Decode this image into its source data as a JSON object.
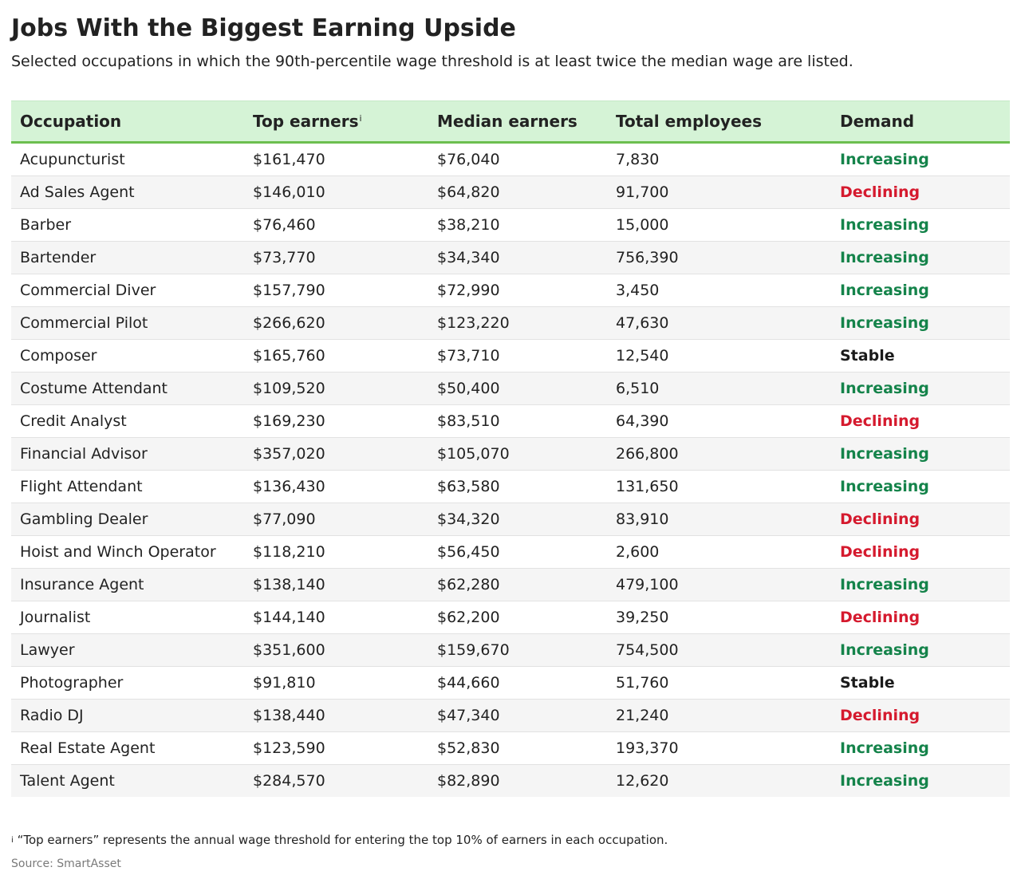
{
  "header": {
    "title": "Jobs With the Biggest Earning Upside",
    "subtitle": "Selected occupations in which the 90th-percentile wage threshold is at least twice the median wage are listed."
  },
  "colors": {
    "header_bg": "#d5f3d6",
    "header_rule": "#6cbf4f",
    "increasing": "#14834a",
    "declining": "#d51a2e",
    "stable": "#1a1a1a"
  },
  "chart_data": {
    "type": "table",
    "columns": [
      "Occupation",
      "Top earners",
      "Median earners",
      "Total employees",
      "Demand"
    ],
    "header_footnote_marker": "i",
    "rows": [
      [
        "Acupuncturist",
        "$161,470",
        "$76,040",
        "7,830",
        "Increasing"
      ],
      [
        "Ad Sales Agent",
        "$146,010",
        "$64,820",
        "91,700",
        "Declining"
      ],
      [
        "Barber",
        "$76,460",
        "$38,210",
        "15,000",
        "Increasing"
      ],
      [
        "Bartender",
        "$73,770",
        "$34,340",
        "756,390",
        "Increasing"
      ],
      [
        "Commercial Diver",
        "$157,790",
        "$72,990",
        "3,450",
        "Increasing"
      ],
      [
        "Commercial Pilot",
        "$266,620",
        "$123,220",
        "47,630",
        "Increasing"
      ],
      [
        "Composer",
        "$165,760",
        "$73,710",
        "12,540",
        "Stable"
      ],
      [
        "Costume Attendant",
        "$109,520",
        "$50,400",
        "6,510",
        "Increasing"
      ],
      [
        "Credit Analyst",
        "$169,230",
        "$83,510",
        "64,390",
        "Declining"
      ],
      [
        "Financial Advisor",
        "$357,020",
        "$105,070",
        "266,800",
        "Increasing"
      ],
      [
        "Flight Attendant",
        "$136,430",
        "$63,580",
        "131,650",
        "Increasing"
      ],
      [
        "Gambling Dealer",
        "$77,090",
        "$34,320",
        "83,910",
        "Declining"
      ],
      [
        "Hoist and Winch Operator",
        "$118,210",
        "$56,450",
        "2,600",
        "Declining"
      ],
      [
        "Insurance Agent",
        "$138,140",
        "$62,280",
        "479,100",
        "Increasing"
      ],
      [
        "Journalist",
        "$144,140",
        "$62,200",
        "39,250",
        "Declining"
      ],
      [
        "Lawyer",
        "$351,600",
        "$159,670",
        "754,500",
        "Increasing"
      ],
      [
        "Photographer",
        "$91,810",
        "$44,660",
        "51,760",
        "Stable"
      ],
      [
        "Radio DJ",
        "$138,440",
        "$47,340",
        "21,240",
        "Declining"
      ],
      [
        "Real Estate Agent",
        "$123,590",
        "$52,830",
        "193,370",
        "Increasing"
      ],
      [
        "Talent Agent",
        "$284,570",
        "$82,890",
        "12,620",
        "Increasing"
      ]
    ]
  },
  "footer": {
    "footnote_marker": "i",
    "footnote": "“Top earners” represents the annual wage threshold for entering the top 10% of earners in each occupation.",
    "source": "Source: SmartAsset"
  }
}
